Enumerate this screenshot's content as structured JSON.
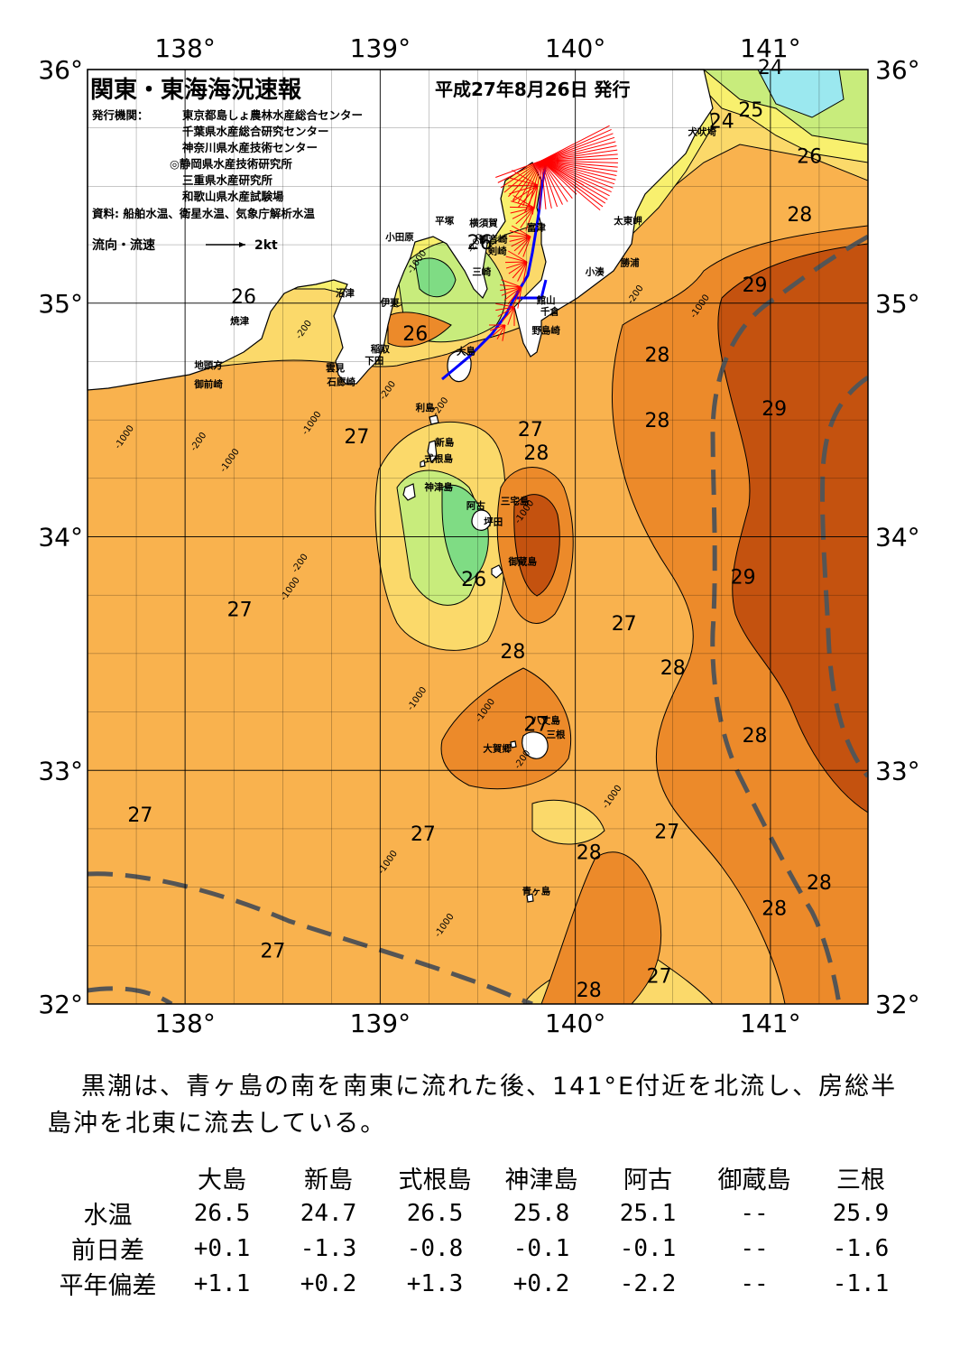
{
  "header": {
    "title": "関東・東海海況速報",
    "date": "平成27年8月26日 発行",
    "issuer_label": "発行機関：",
    "issuers": [
      "東京都島しょ農林水産総合センター",
      "千葉県水産総合研究センター",
      "神奈川県水産技術センター",
      "◎静岡県水産技術研究所",
      "三重県水産研究所",
      "和歌山県水産試験場"
    ],
    "source": "資料: 船舶水温、衛星水温、気象庁解析水温",
    "flow_legend_label": "流向・流速",
    "flow_legend_unit": "2kt"
  },
  "axes": {
    "lon_ticks": [
      "138°",
      "139°",
      "140°",
      "141°"
    ],
    "lat_ticks": [
      "36°",
      "35°",
      "34°",
      "33°",
      "32°"
    ]
  },
  "colors": {
    "sea_27": "#f9b24e",
    "sea_28": "#ec8a2a",
    "sea_29": "#c4520f",
    "sea_26": "#fbd96a",
    "sea_25": "#f8f06e",
    "sea_24": "#c8ec7c",
    "sea_23": "#7fdc84",
    "sea_cold": "#9be8ef",
    "kuroshio_axis": "#555555",
    "flow_vector": "#ff0000",
    "ship_track": "#0000ff",
    "land": "#ffffff"
  },
  "isotherm_labels": [
    {
      "text": "24",
      "lon": 141.0,
      "lat": 35.98
    },
    {
      "text": "24",
      "lon": 140.75,
      "lat": 35.75
    },
    {
      "text": "25",
      "lon": 140.9,
      "lat": 35.8
    },
    {
      "text": "26",
      "lon": 141.2,
      "lat": 35.6
    },
    {
      "text": "28",
      "lon": 141.15,
      "lat": 35.35
    },
    {
      "text": "29",
      "lon": 140.92,
      "lat": 35.05
    },
    {
      "text": "28",
      "lon": 140.42,
      "lat": 34.75
    },
    {
      "text": "28",
      "lon": 140.42,
      "lat": 34.47
    },
    {
      "text": "29",
      "lon": 141.02,
      "lat": 34.52
    },
    {
      "text": "29",
      "lon": 140.86,
      "lat": 33.8
    },
    {
      "text": "28",
      "lon": 140.5,
      "lat": 33.41
    },
    {
      "text": "27",
      "lon": 140.25,
      "lat": 33.6
    },
    {
      "text": "28",
      "lon": 140.92,
      "lat": 33.12
    },
    {
      "text": "27",
      "lon": 140.47,
      "lat": 32.71
    },
    {
      "text": "28",
      "lon": 141.25,
      "lat": 32.49
    },
    {
      "text": "28",
      "lon": 141.02,
      "lat": 32.38
    },
    {
      "text": "27",
      "lon": 140.43,
      "lat": 32.09
    },
    {
      "text": "28",
      "lon": 140.07,
      "lat": 32.03
    },
    {
      "text": "28",
      "lon": 140.07,
      "lat": 32.62
    },
    {
      "text": "27",
      "lon": 139.22,
      "lat": 32.7
    },
    {
      "text": "27",
      "lon": 137.77,
      "lat": 32.78
    },
    {
      "text": "27",
      "lon": 138.45,
      "lat": 32.2
    },
    {
      "text": "28",
      "lon": 139.68,
      "lat": 33.48
    },
    {
      "text": "27",
      "lon": 139.8,
      "lat": 33.17
    },
    {
      "text": "26",
      "lon": 139.48,
      "lat": 33.79
    },
    {
      "text": "27",
      "lon": 138.28,
      "lat": 33.66
    },
    {
      "text": "27",
      "lon": 139.77,
      "lat": 34.43
    },
    {
      "text": "28",
      "lon": 139.8,
      "lat": 34.33
    },
    {
      "text": "27",
      "lon": 138.88,
      "lat": 34.4
    },
    {
      "text": "26",
      "lon": 139.18,
      "lat": 34.84
    },
    {
      "text": "26",
      "lon": 138.3,
      "lat": 35.0
    },
    {
      "text": "26",
      "lon": 139.51,
      "lat": 35.23
    }
  ],
  "depth_labels": [
    {
      "text": "-1000",
      "lon": 137.7,
      "lat": 34.42
    },
    {
      "text": "-200",
      "lon": 138.08,
      "lat": 34.4
    },
    {
      "text": "-1000",
      "lon": 138.24,
      "lat": 34.32
    },
    {
      "text": "-1000",
      "lon": 138.66,
      "lat": 34.48
    },
    {
      "text": "-200",
      "lon": 138.62,
      "lat": 34.88
    },
    {
      "text": "-200",
      "lon": 139.05,
      "lat": 34.62
    },
    {
      "text": "-200",
      "lon": 139.32,
      "lat": 34.55
    },
    {
      "text": "-200",
      "lon": 138.6,
      "lat": 33.88
    },
    {
      "text": "-1000",
      "lon": 138.55,
      "lat": 33.77
    },
    {
      "text": "-1000",
      "lon": 139.2,
      "lat": 33.3
    },
    {
      "text": "-1000",
      "lon": 139.55,
      "lat": 33.25
    },
    {
      "text": "-1000",
      "lon": 139.75,
      "lat": 34.1
    },
    {
      "text": "-1000",
      "lon": 140.65,
      "lat": 34.98
    },
    {
      "text": "-200",
      "lon": 140.32,
      "lat": 35.03
    },
    {
      "text": "-1000",
      "lon": 140.2,
      "lat": 32.88
    },
    {
      "text": "-1000",
      "lon": 139.05,
      "lat": 32.6
    },
    {
      "text": "-1000",
      "lon": 139.34,
      "lat": 32.33
    },
    {
      "text": "-200",
      "lon": 139.74,
      "lat": 33.04
    },
    {
      "text": "-200",
      "lon": 139.5,
      "lat": 35.25
    },
    {
      "text": "-1000",
      "lon": 139.2,
      "lat": 35.17
    }
  ],
  "place_labels": [
    {
      "text": "犬吠埼",
      "lon": 140.65,
      "lat": 35.72
    },
    {
      "text": "太東岬",
      "lon": 140.27,
      "lat": 35.34
    },
    {
      "text": "勝浦",
      "lon": 140.28,
      "lat": 35.16
    },
    {
      "text": "小湊",
      "lon": 140.1,
      "lat": 35.12
    },
    {
      "text": "富津",
      "lon": 139.8,
      "lat": 35.31
    },
    {
      "text": "館山",
      "lon": 139.85,
      "lat": 35.0
    },
    {
      "text": "千倉",
      "lon": 139.87,
      "lat": 34.95
    },
    {
      "text": "野島崎",
      "lon": 139.85,
      "lat": 34.87
    },
    {
      "text": "横須賀",
      "lon": 139.53,
      "lat": 35.33
    },
    {
      "text": "観音崎",
      "lon": 139.58,
      "lat": 35.26
    },
    {
      "text": "剣崎",
      "lon": 139.6,
      "lat": 35.21
    },
    {
      "text": "三崎",
      "lon": 139.52,
      "lat": 35.12
    },
    {
      "text": "平塚",
      "lon": 139.33,
      "lat": 35.34
    },
    {
      "text": "小田原",
      "lon": 139.1,
      "lat": 35.27
    },
    {
      "text": "沼津",
      "lon": 138.82,
      "lat": 35.03
    },
    {
      "text": "伊東",
      "lon": 139.05,
      "lat": 34.99
    },
    {
      "text": "焼津",
      "lon": 138.28,
      "lat": 34.91
    },
    {
      "text": "稲取",
      "lon": 139.0,
      "lat": 34.79
    },
    {
      "text": "下田",
      "lon": 138.97,
      "lat": 34.74
    },
    {
      "text": "雲見",
      "lon": 138.77,
      "lat": 34.71
    },
    {
      "text": "石廊崎",
      "lon": 138.8,
      "lat": 34.65
    },
    {
      "text": "地頭方",
      "lon": 138.12,
      "lat": 34.72
    },
    {
      "text": "御前崎",
      "lon": 138.12,
      "lat": 34.64
    },
    {
      "text": "大島",
      "lon": 139.44,
      "lat": 34.78
    },
    {
      "text": "利島",
      "lon": 139.23,
      "lat": 34.54
    },
    {
      "text": "新島",
      "lon": 139.33,
      "lat": 34.39
    },
    {
      "text": "式根島",
      "lon": 139.3,
      "lat": 34.32
    },
    {
      "text": "神津島",
      "lon": 139.3,
      "lat": 34.2
    },
    {
      "text": "三宅島",
      "lon": 139.69,
      "lat": 34.14
    },
    {
      "text": "阿古",
      "lon": 139.49,
      "lat": 34.12
    },
    {
      "text": "坪田",
      "lon": 139.58,
      "lat": 34.05
    },
    {
      "text": "御蔵島",
      "lon": 139.73,
      "lat": 33.88
    },
    {
      "text": "八丈島",
      "lon": 139.85,
      "lat": 33.2
    },
    {
      "text": "三根",
      "lon": 139.9,
      "lat": 33.14
    },
    {
      "text": "大賀郷",
      "lon": 139.6,
      "lat": 33.08
    },
    {
      "text": "青ヶ島",
      "lon": 139.8,
      "lat": 32.47
    }
  ],
  "summary": "黒潮は、青ヶ島の南を南東に流れた後、141°E付近を北流し、房総半島沖を北東に流去している。",
  "table": {
    "columns": [
      "大島",
      "新島",
      "式根島",
      "神津島",
      "阿古",
      "御蔵島",
      "三根"
    ],
    "rows": [
      {
        "label": "水温",
        "values": [
          "26.5",
          "24.7",
          "26.5",
          "25.8",
          "25.1",
          "--",
          "25.9"
        ]
      },
      {
        "label": "前日差",
        "values": [
          "+0.1",
          "-1.3",
          "-0.8",
          "-0.1",
          "-0.1",
          "--",
          "-1.6"
        ]
      },
      {
        "label": "平年偏差",
        "values": [
          "+1.1",
          "+0.2",
          "+1.3",
          "+0.2",
          "-2.2",
          "--",
          "-1.1"
        ]
      }
    ]
  }
}
